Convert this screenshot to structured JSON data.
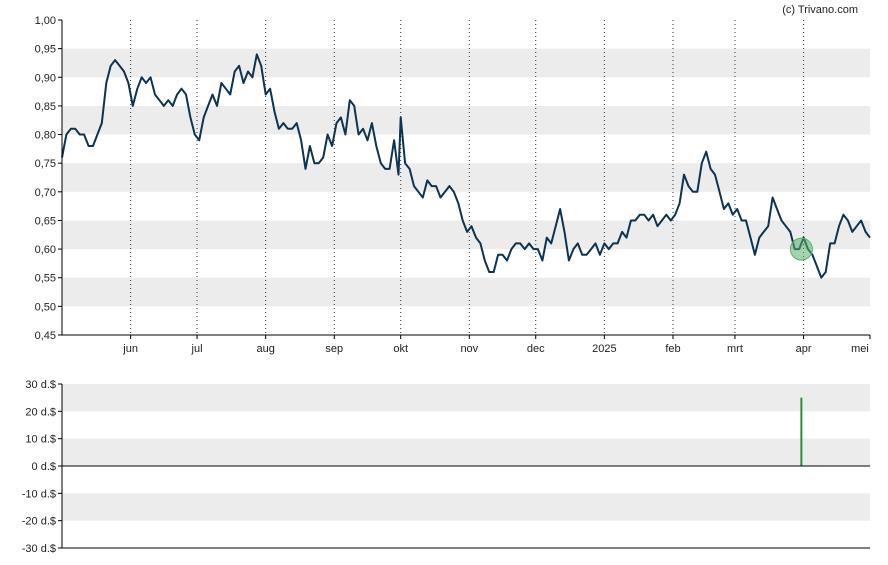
{
  "credit": "(c) Trivano.com",
  "chart_data": [
    {
      "type": "line",
      "title": "",
      "xlabel": "",
      "ylabel": "",
      "ylim": [
        0.45,
        1.0
      ],
      "yticks": [
        "1,00",
        "0,95",
        "0,90",
        "0,85",
        "0,80",
        "0,75",
        "0,70",
        "0,65",
        "0,60",
        "0,55",
        "0,50",
        "0,45"
      ],
      "xticks": [
        {
          "label": "jun",
          "x": "2024-06-01"
        },
        {
          "label": "jul",
          "x": "2024-07-01"
        },
        {
          "label": "aug",
          "x": "2024-08-01"
        },
        {
          "label": "sep",
          "x": "2024-09-01"
        },
        {
          "label": "okt",
          "x": "2024-10-01"
        },
        {
          "label": "nov",
          "x": "2024-11-01"
        },
        {
          "label": "dec",
          "x": "2024-12-01"
        },
        {
          "label": "2025",
          "x": "2025-01-01"
        },
        {
          "label": "feb",
          "x": "2025-02-01"
        },
        {
          "label": "mrt",
          "x": "2025-03-01"
        },
        {
          "label": "apr",
          "x": "2025-04-01"
        },
        {
          "label": "mei",
          "x": "2025-05-01"
        }
      ],
      "xlim": [
        "2024-05-01",
        "2025-05-01"
      ],
      "grid": "alternating horizontal bands, dotted vertical month lines",
      "line_color": "#0d3350",
      "series": [
        {
          "name": "",
          "points": [
            [
              "2024-05-01",
              0.76
            ],
            [
              "2024-05-03",
              0.8
            ],
            [
              "2024-05-05",
              0.81
            ],
            [
              "2024-05-07",
              0.81
            ],
            [
              "2024-05-09",
              0.8
            ],
            [
              "2024-05-11",
              0.8
            ],
            [
              "2024-05-13",
              0.78
            ],
            [
              "2024-05-15",
              0.78
            ],
            [
              "2024-05-17",
              0.8
            ],
            [
              "2024-05-19",
              0.82
            ],
            [
              "2024-05-21",
              0.89
            ],
            [
              "2024-05-23",
              0.92
            ],
            [
              "2024-05-25",
              0.93
            ],
            [
              "2024-05-27",
              0.92
            ],
            [
              "2024-05-29",
              0.91
            ],
            [
              "2024-05-31",
              0.89
            ],
            [
              "2024-06-02",
              0.85
            ],
            [
              "2024-06-04",
              0.88
            ],
            [
              "2024-06-06",
              0.9
            ],
            [
              "2024-06-08",
              0.89
            ],
            [
              "2024-06-10",
              0.9
            ],
            [
              "2024-06-12",
              0.87
            ],
            [
              "2024-06-14",
              0.86
            ],
            [
              "2024-06-16",
              0.85
            ],
            [
              "2024-06-18",
              0.86
            ],
            [
              "2024-06-20",
              0.85
            ],
            [
              "2024-06-22",
              0.87
            ],
            [
              "2024-06-24",
              0.88
            ],
            [
              "2024-06-26",
              0.87
            ],
            [
              "2024-06-28",
              0.83
            ],
            [
              "2024-06-30",
              0.8
            ],
            [
              "2024-07-02",
              0.79
            ],
            [
              "2024-07-04",
              0.83
            ],
            [
              "2024-07-06",
              0.85
            ],
            [
              "2024-07-08",
              0.87
            ],
            [
              "2024-07-10",
              0.85
            ],
            [
              "2024-07-12",
              0.89
            ],
            [
              "2024-07-14",
              0.88
            ],
            [
              "2024-07-16",
              0.87
            ],
            [
              "2024-07-18",
              0.91
            ],
            [
              "2024-07-20",
              0.92
            ],
            [
              "2024-07-22",
              0.89
            ],
            [
              "2024-07-24",
              0.91
            ],
            [
              "2024-07-26",
              0.9
            ],
            [
              "2024-07-28",
              0.94
            ],
            [
              "2024-07-30",
              0.92
            ],
            [
              "2024-08-01",
              0.87
            ],
            [
              "2024-08-03",
              0.88
            ],
            [
              "2024-08-05",
              0.84
            ],
            [
              "2024-08-07",
              0.81
            ],
            [
              "2024-08-09",
              0.82
            ],
            [
              "2024-08-11",
              0.81
            ],
            [
              "2024-08-13",
              0.81
            ],
            [
              "2024-08-15",
              0.82
            ],
            [
              "2024-08-17",
              0.79
            ],
            [
              "2024-08-19",
              0.74
            ],
            [
              "2024-08-21",
              0.78
            ],
            [
              "2024-08-23",
              0.75
            ],
            [
              "2024-08-25",
              0.75
            ],
            [
              "2024-08-27",
              0.76
            ],
            [
              "2024-08-29",
              0.8
            ],
            [
              "2024-08-31",
              0.78
            ],
            [
              "2024-09-02",
              0.82
            ],
            [
              "2024-09-04",
              0.83
            ],
            [
              "2024-09-06",
              0.8
            ],
            [
              "2024-09-08",
              0.86
            ],
            [
              "2024-09-10",
              0.85
            ],
            [
              "2024-09-12",
              0.8
            ],
            [
              "2024-09-14",
              0.81
            ],
            [
              "2024-09-16",
              0.79
            ],
            [
              "2024-09-18",
              0.82
            ],
            [
              "2024-09-20",
              0.78
            ],
            [
              "2024-09-22",
              0.75
            ],
            [
              "2024-09-24",
              0.74
            ],
            [
              "2024-09-26",
              0.74
            ],
            [
              "2024-09-28",
              0.79
            ],
            [
              "2024-09-30",
              0.73
            ],
            [
              "2024-10-01",
              0.83
            ],
            [
              "2024-10-03",
              0.75
            ],
            [
              "2024-10-05",
              0.74
            ],
            [
              "2024-10-07",
              0.71
            ],
            [
              "2024-10-09",
              0.7
            ],
            [
              "2024-10-11",
              0.69
            ],
            [
              "2024-10-13",
              0.72
            ],
            [
              "2024-10-15",
              0.71
            ],
            [
              "2024-10-17",
              0.71
            ],
            [
              "2024-10-19",
              0.69
            ],
            [
              "2024-10-21",
              0.7
            ],
            [
              "2024-10-23",
              0.71
            ],
            [
              "2024-10-25",
              0.7
            ],
            [
              "2024-10-27",
              0.68
            ],
            [
              "2024-10-29",
              0.65
            ],
            [
              "2024-10-31",
              0.63
            ],
            [
              "2024-11-02",
              0.64
            ],
            [
              "2024-11-04",
              0.62
            ],
            [
              "2024-11-06",
              0.61
            ],
            [
              "2024-11-08",
              0.58
            ],
            [
              "2024-11-10",
              0.56
            ],
            [
              "2024-11-12",
              0.56
            ],
            [
              "2024-11-14",
              0.59
            ],
            [
              "2024-11-16",
              0.59
            ],
            [
              "2024-11-18",
              0.58
            ],
            [
              "2024-11-20",
              0.6
            ],
            [
              "2024-11-22",
              0.61
            ],
            [
              "2024-11-24",
              0.61
            ],
            [
              "2024-11-26",
              0.6
            ],
            [
              "2024-11-28",
              0.61
            ],
            [
              "2024-11-30",
              0.6
            ],
            [
              "2024-12-02",
              0.6
            ],
            [
              "2024-12-04",
              0.58
            ],
            [
              "2024-12-06",
              0.62
            ],
            [
              "2024-12-08",
              0.61
            ],
            [
              "2024-12-10",
              0.64
            ],
            [
              "2024-12-12",
              0.67
            ],
            [
              "2024-12-14",
              0.63
            ],
            [
              "2024-12-16",
              0.58
            ],
            [
              "2024-12-18",
              0.6
            ],
            [
              "2024-12-20",
              0.61
            ],
            [
              "2024-12-22",
              0.59
            ],
            [
              "2024-12-24",
              0.59
            ],
            [
              "2024-12-26",
              0.6
            ],
            [
              "2024-12-28",
              0.61
            ],
            [
              "2024-12-30",
              0.59
            ],
            [
              "2025-01-01",
              0.61
            ],
            [
              "2025-01-03",
              0.6
            ],
            [
              "2025-01-05",
              0.61
            ],
            [
              "2025-01-07",
              0.61
            ],
            [
              "2025-01-09",
              0.63
            ],
            [
              "2025-01-11",
              0.62
            ],
            [
              "2025-01-13",
              0.65
            ],
            [
              "2025-01-15",
              0.65
            ],
            [
              "2025-01-17",
              0.66
            ],
            [
              "2025-01-19",
              0.66
            ],
            [
              "2025-01-21",
              0.65
            ],
            [
              "2025-01-23",
              0.66
            ],
            [
              "2025-01-25",
              0.64
            ],
            [
              "2025-01-27",
              0.65
            ],
            [
              "2025-01-29",
              0.66
            ],
            [
              "2025-01-31",
              0.65
            ],
            [
              "2025-02-02",
              0.66
            ],
            [
              "2025-02-04",
              0.68
            ],
            [
              "2025-02-06",
              0.73
            ],
            [
              "2025-02-08",
              0.71
            ],
            [
              "2025-02-10",
              0.7
            ],
            [
              "2025-02-12",
              0.7
            ],
            [
              "2025-02-14",
              0.75
            ],
            [
              "2025-02-16",
              0.77
            ],
            [
              "2025-02-18",
              0.74
            ],
            [
              "2025-02-20",
              0.73
            ],
            [
              "2025-02-22",
              0.7
            ],
            [
              "2025-02-24",
              0.67
            ],
            [
              "2025-02-26",
              0.68
            ],
            [
              "2025-02-28",
              0.66
            ],
            [
              "2025-03-02",
              0.67
            ],
            [
              "2025-03-04",
              0.65
            ],
            [
              "2025-03-06",
              0.65
            ],
            [
              "2025-03-08",
              0.62
            ],
            [
              "2025-03-10",
              0.59
            ],
            [
              "2025-03-12",
              0.62
            ],
            [
              "2025-03-14",
              0.63
            ],
            [
              "2025-03-16",
              0.64
            ],
            [
              "2025-03-18",
              0.69
            ],
            [
              "2025-03-20",
              0.67
            ],
            [
              "2025-03-22",
              0.65
            ],
            [
              "2025-03-24",
              0.64
            ],
            [
              "2025-03-26",
              0.63
            ],
            [
              "2025-03-28",
              0.6
            ],
            [
              "2025-03-30",
              0.6
            ],
            [
              "2025-04-01",
              0.62
            ],
            [
              "2025-04-03",
              0.6
            ],
            [
              "2025-04-05",
              0.59
            ],
            [
              "2025-04-07",
              0.57
            ],
            [
              "2025-04-09",
              0.55
            ],
            [
              "2025-04-11",
              0.56
            ],
            [
              "2025-04-13",
              0.61
            ],
            [
              "2025-04-15",
              0.61
            ],
            [
              "2025-04-17",
              0.64
            ],
            [
              "2025-04-19",
              0.66
            ],
            [
              "2025-04-21",
              0.65
            ],
            [
              "2025-04-23",
              0.63
            ],
            [
              "2025-04-25",
              0.64
            ],
            [
              "2025-04-27",
              0.65
            ],
            [
              "2025-04-29",
              0.63
            ],
            [
              "2025-05-01",
              0.62
            ]
          ]
        }
      ],
      "markers": [
        {
          "type": "circle",
          "x": "2025-03-31",
          "y": 0.6,
          "color": "#58b06a"
        }
      ]
    },
    {
      "type": "bar",
      "title": "",
      "xlabel": "",
      "ylabel": "",
      "ylim": [
        -30,
        30
      ],
      "yticks": [
        "30 d.$",
        "20 d.$",
        "10 d.$",
        "0 d.$",
        "-10 d.$",
        "-20 d.$",
        "-30 d.$"
      ],
      "xlim": [
        "2024-05-01",
        "2025-05-01"
      ],
      "bar_color": "#2e8b3e",
      "series": [
        {
          "name": "",
          "points": [
            [
              "2025-03-31",
              25
            ]
          ]
        }
      ]
    }
  ]
}
